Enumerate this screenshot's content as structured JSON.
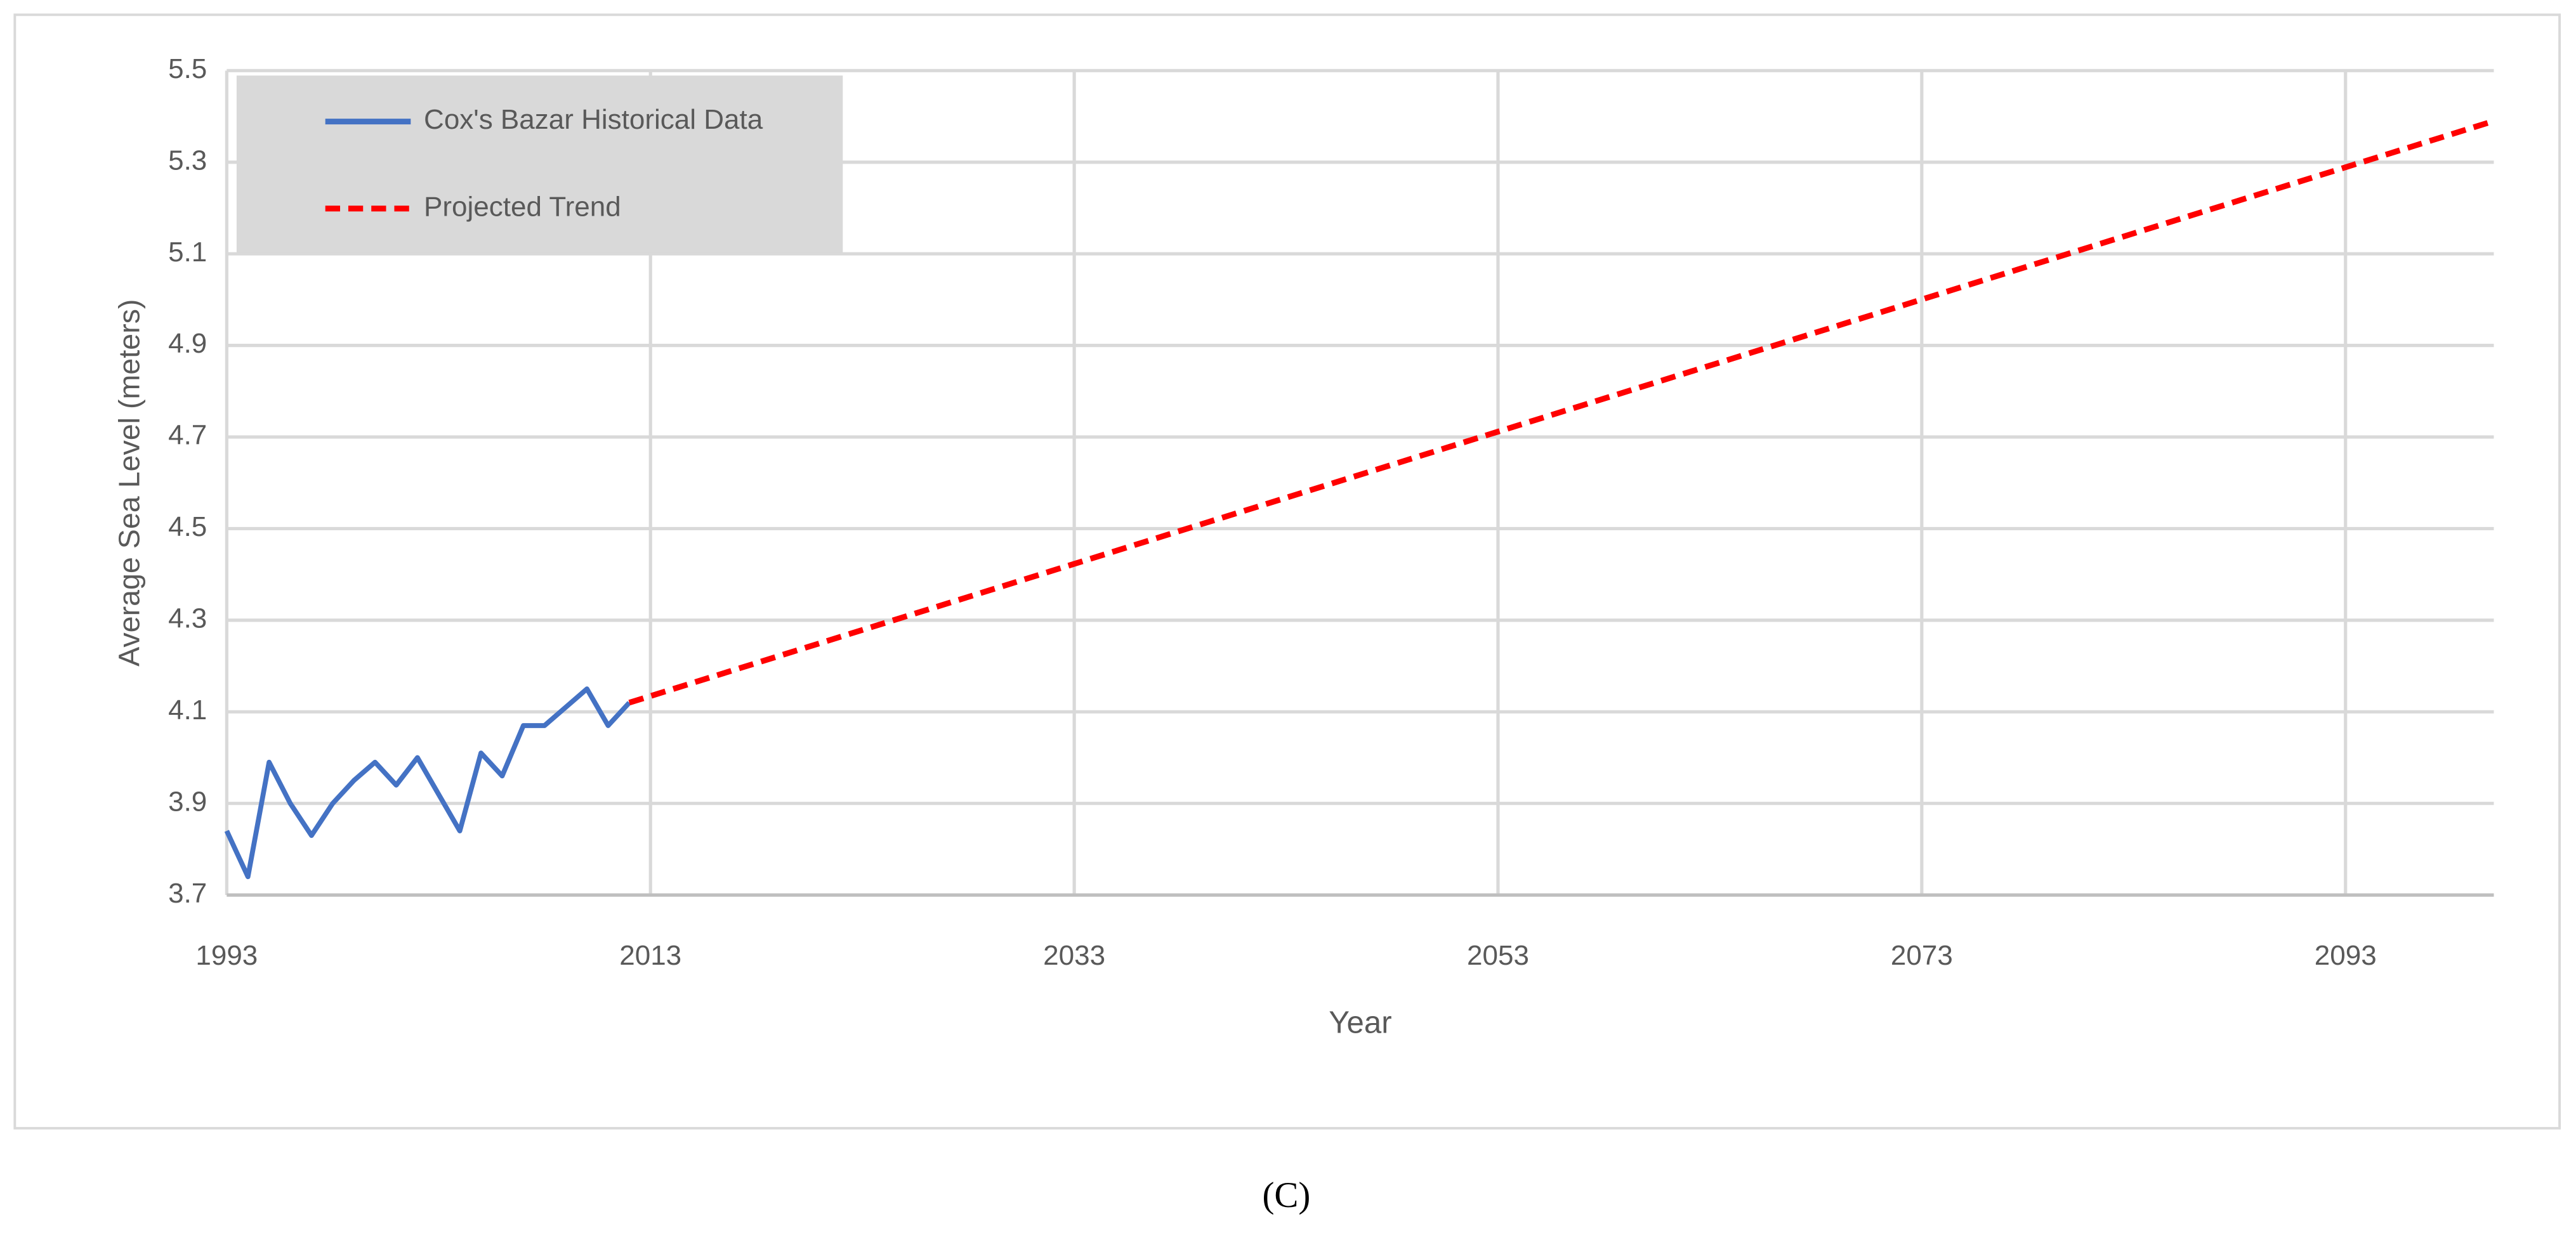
{
  "chart_data": {
    "type": "line",
    "x_label": "Year",
    "y_label": "Average Sea Level (meters)",
    "caption": "(C)",
    "xlim": [
      1993,
      2100
    ],
    "xticks": [
      1993,
      2013,
      2033,
      2053,
      2073,
      2093
    ],
    "ylim": [
      3.7,
      5.5
    ],
    "yticks": [
      3.7,
      3.9,
      4.1,
      4.3,
      4.5,
      4.7,
      4.9,
      5.1,
      5.3,
      5.5
    ],
    "grid": true,
    "legend": "upper left",
    "series": [
      {
        "name": "Cox's Bazar Historical Data",
        "color": "#4472c4",
        "dash": false,
        "x": [
          1993,
          1994,
          1995,
          1996,
          1997,
          1998,
          1999,
          2000,
          2001,
          2002,
          2003,
          2004,
          2005,
          2006,
          2007,
          2008,
          2009,
          2010,
          2011,
          2012
        ],
        "values": [
          3.84,
          3.74,
          3.99,
          3.9,
          3.83,
          3.9,
          3.95,
          3.99,
          3.94,
          4.0,
          3.92,
          3.84,
          4.01,
          3.96,
          4.07,
          4.07,
          4.11,
          4.15,
          4.07,
          4.12
        ]
      },
      {
        "name": "Projected Trend",
        "color": "#ff0000",
        "dash": true,
        "x": [
          2012,
          2100
        ],
        "values": [
          4.12,
          5.39
        ]
      }
    ]
  }
}
